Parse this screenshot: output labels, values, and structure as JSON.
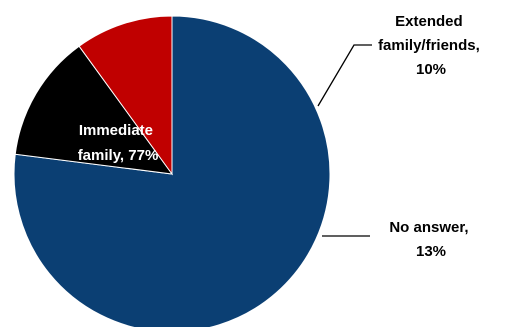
{
  "chart_data": {
    "type": "pie",
    "slices": [
      {
        "label": "Immediate family",
        "value": 77,
        "display": [
          "Immediate",
          "family, 77%"
        ],
        "color": "#0b3f73"
      },
      {
        "label": "Extended family/friends",
        "value": 10,
        "display": [
          "Extended",
          "family/friends,",
          "10%"
        ],
        "color": "#c00000"
      },
      {
        "label": "No answer",
        "value": 13,
        "display": [
          "No answer,",
          "13%"
        ],
        "color": "#000000"
      }
    ],
    "order": "clockwise starting at 12 o'clock with Immediate family, then No answer, then Extended family/friends",
    "legend": "none",
    "label_color_inside": "#ffffff",
    "label_color_outside": "#000000"
  }
}
